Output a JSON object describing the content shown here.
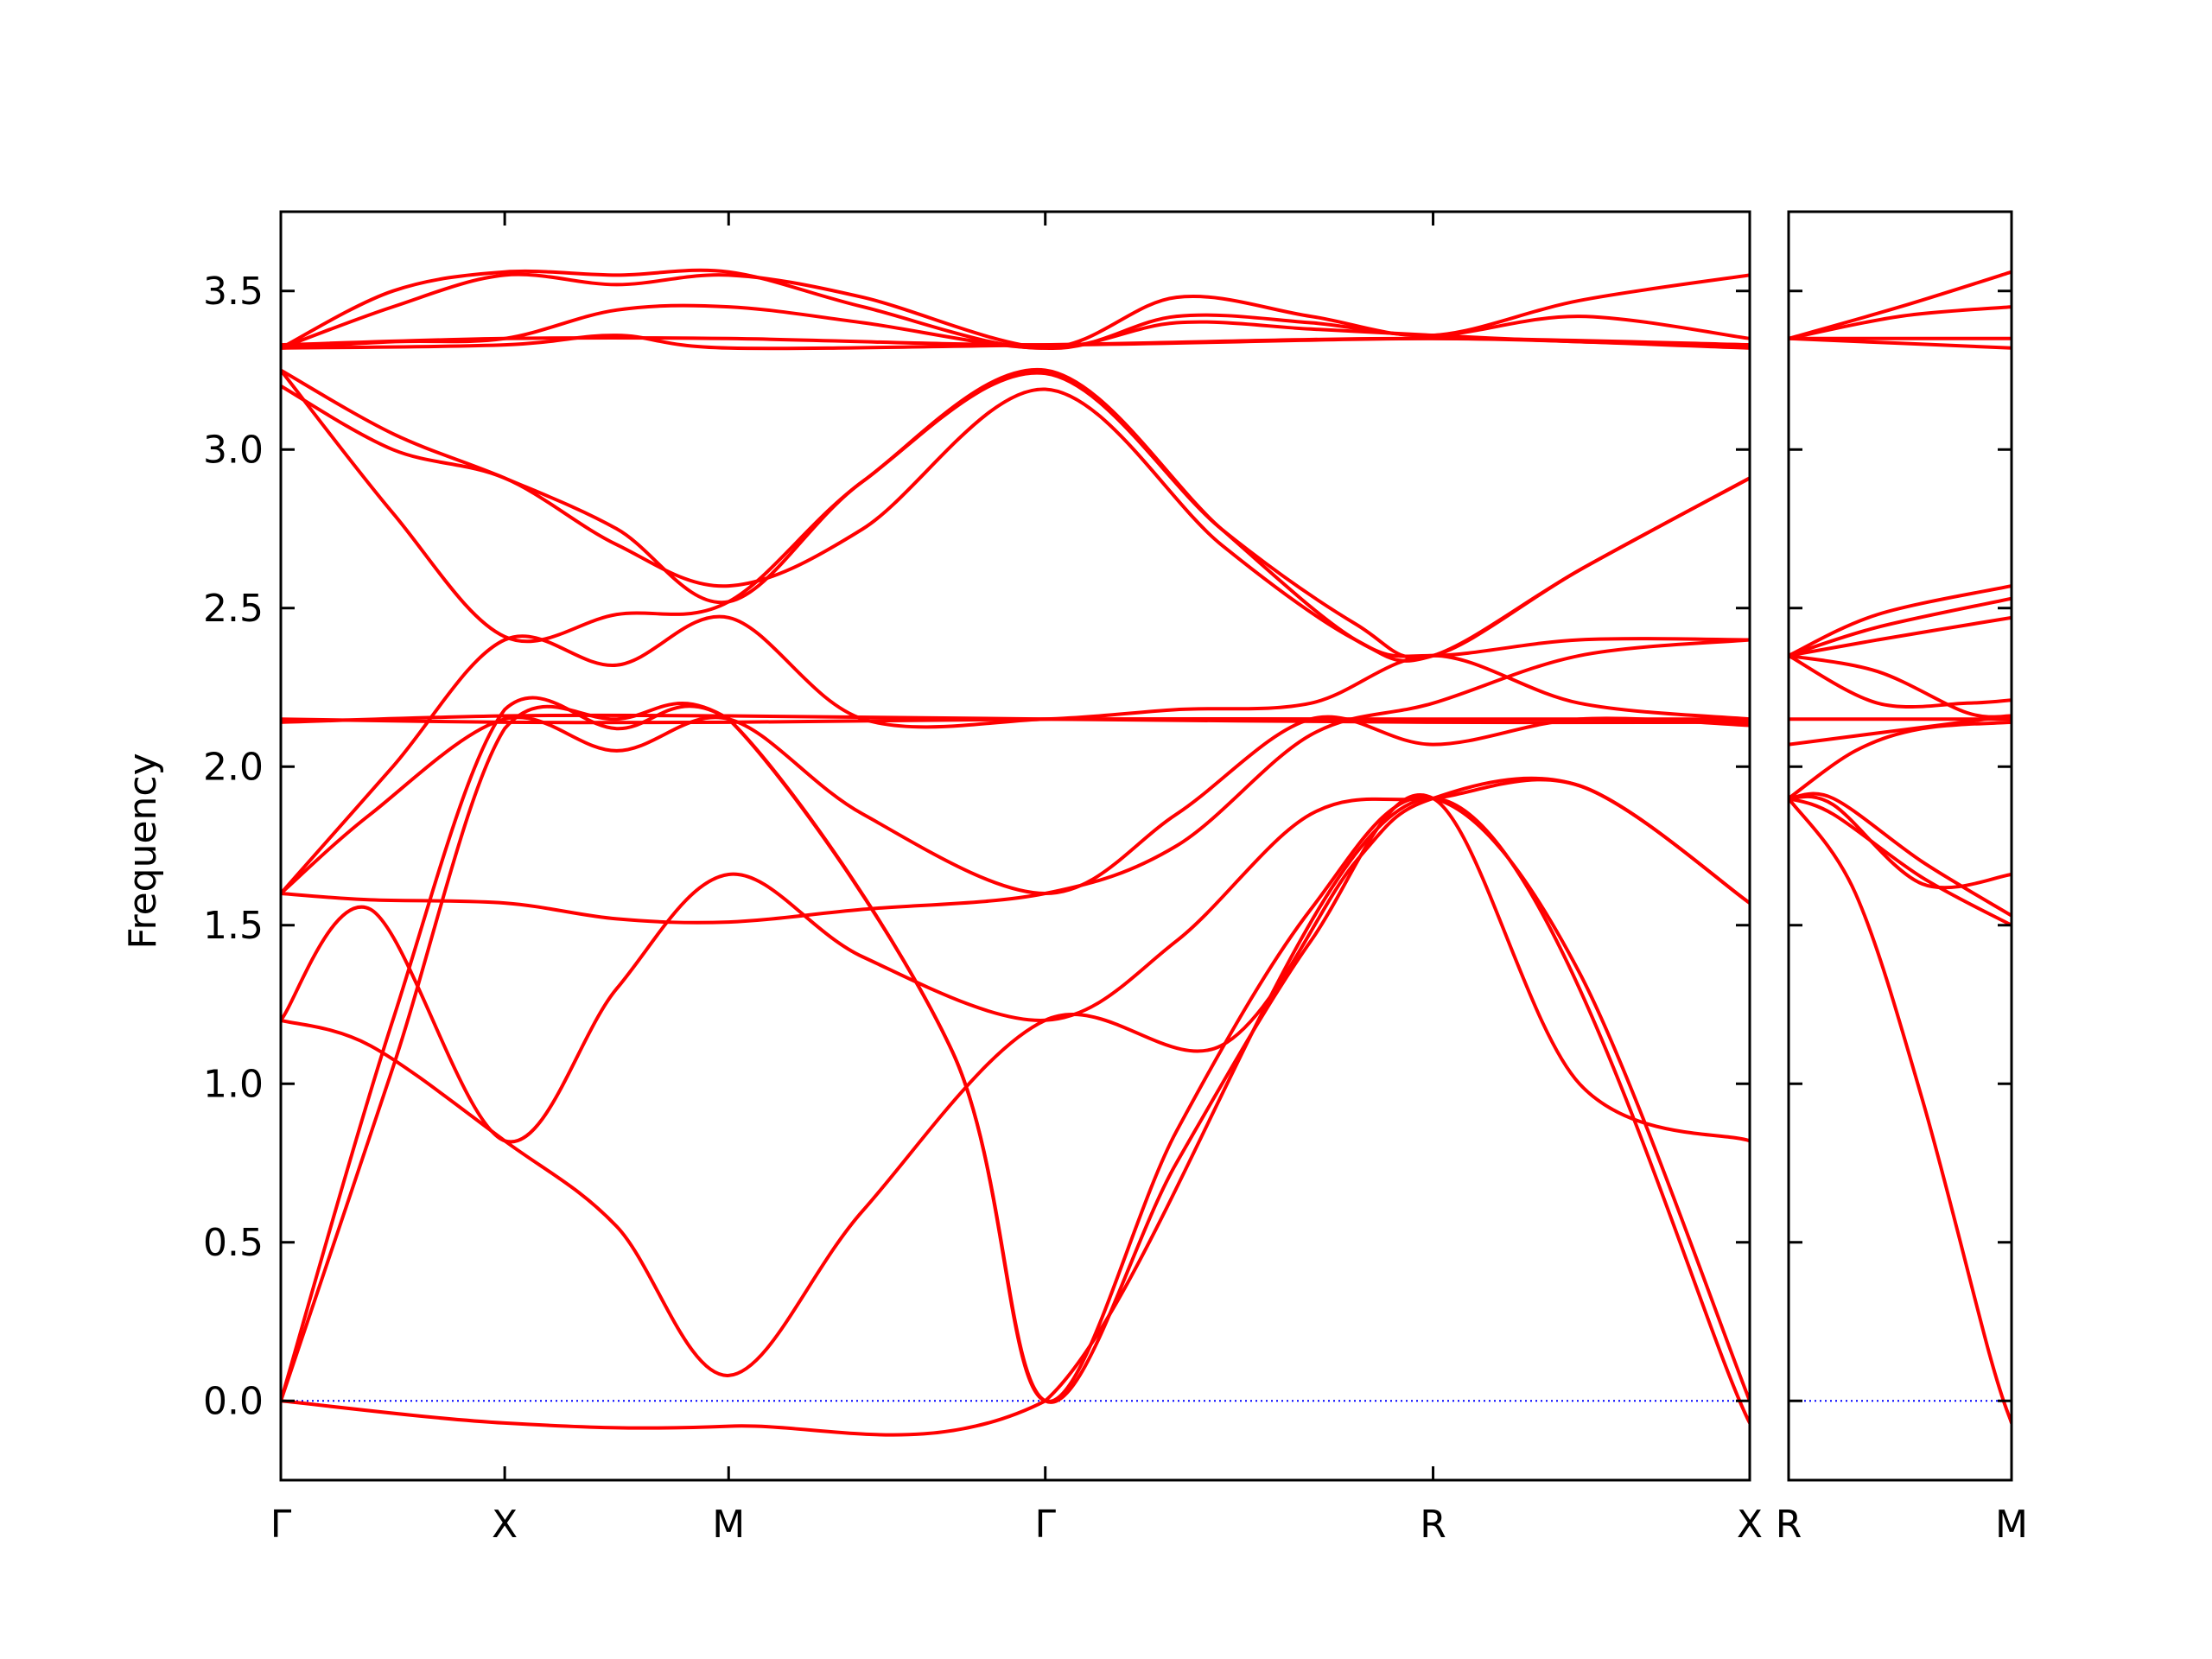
{
  "chart_data": {
    "type": "line",
    "ylabel": "Frequency",
    "ylim": [
      -0.25,
      3.75
    ],
    "yticks": [
      "0.0",
      "0.5",
      "1.0",
      "1.5",
      "2.0",
      "2.5",
      "3.0",
      "3.5"
    ],
    "ytick_values": [
      0.0,
      0.5,
      1.0,
      1.5,
      2.0,
      2.5,
      3.0,
      3.5
    ],
    "band_color": "#ff0000",
    "zero_line_color": "#0000ff",
    "panels": [
      {
        "xticks": [
          "Γ",
          "X",
          "M",
          "Γ",
          "R",
          "X"
        ],
        "xtick_positions": [
          0,
          0.5,
          1.0,
          1.7071,
          2.5731,
          3.2802
        ],
        "xlim": [
          0,
          3.2802
        ],
        "bands": [
          {
            "x": [
              0,
              0.5,
              1.0,
              1.7071,
              2.5731,
              3.2802
            ],
            "y": [
              0.0,
              -0.07,
              -0.08,
              0.0,
              1.9,
              -0.07
            ]
          },
          {
            "x": [
              0,
              0.25,
              0.5,
              0.75,
              1.0,
              1.5,
              1.7071,
              2.0,
              2.3,
              2.5731,
              2.9,
              3.2802
            ],
            "y": [
              0.0,
              1.05,
              2.12,
              2.15,
              2.15,
              1.1,
              0.0,
              0.85,
              1.55,
              1.9,
              1.35,
              0.0
            ]
          },
          {
            "x": [
              0,
              0.25,
              0.5,
              0.75,
              1.0,
              1.5,
              1.7071,
              2.0,
              2.3,
              2.5731,
              2.9,
              3.2802
            ],
            "y": [
              0.0,
              1.2,
              2.18,
              2.12,
              2.15,
              1.1,
              0.0,
              0.75,
              1.45,
              1.9,
              1.0,
              0.82
            ]
          },
          {
            "x": [
              0,
              0.2,
              0.5,
              0.75,
              1.0,
              1.3,
              1.7071,
              2.1,
              2.4,
              2.5731,
              2.9,
              3.2802
            ],
            "y": [
              1.2,
              1.12,
              0.82,
              0.55,
              0.08,
              0.6,
              1.2,
              1.12,
              1.7,
              1.9,
              1.94,
              1.57
            ]
          },
          {
            "x": [
              0,
              0.2,
              0.5,
              0.75,
              1.0,
              1.3,
              1.7071,
              2.0,
              2.3,
              2.5731,
              2.9,
              3.2802
            ],
            "y": [
              1.2,
              1.55,
              0.82,
              1.3,
              1.66,
              1.4,
              1.2,
              1.45,
              1.85,
              1.9,
              1.94,
              1.57
            ]
          },
          {
            "x": [
              0,
              0.2,
              0.5,
              0.75,
              1.0,
              1.3,
              1.7071,
              2.0,
              2.3,
              2.5731,
              2.9,
              3.2802
            ],
            "y": [
              1.6,
              1.58,
              1.57,
              1.52,
              1.51,
              1.55,
              1.6,
              1.75,
              2.1,
              2.2,
              2.35,
              2.4
            ]
          },
          {
            "x": [
              0,
              0.2,
              0.5,
              0.75,
              1.0,
              1.3,
              1.7071,
              2.0,
              2.3,
              2.5731,
              2.9,
              3.2802
            ],
            "y": [
              1.6,
              1.85,
              2.15,
              2.05,
              2.15,
              1.85,
              1.6,
              1.85,
              2.15,
              2.07,
              2.15,
              2.13
            ]
          },
          {
            "x": [
              0,
              0.25,
              0.5,
              0.75,
              1.0,
              1.3,
              1.7071,
              2.0,
              2.3,
              2.5731,
              2.9,
              3.2802
            ],
            "y": [
              1.6,
              2.0,
              2.4,
              2.32,
              2.47,
              2.15,
              2.15,
              2.18,
              2.2,
              2.35,
              2.2,
              2.15
            ]
          },
          {
            "x": [
              0,
              0.5,
              1.0,
              1.7071,
              2.5731,
              3.2802
            ],
            "y": [
              2.15,
              2.14,
              2.14,
              2.15,
              2.15,
              2.15
            ]
          },
          {
            "x": [
              0,
              0.5,
              1.0,
              1.7071,
              2.5731,
              3.2802
            ],
            "y": [
              2.14,
              2.16,
              2.16,
              2.15,
              2.14,
              2.14
            ]
          },
          {
            "x": [
              0,
              0.25,
              0.5,
              0.75,
              1.0,
              1.3,
              1.7071,
              2.1,
              2.4,
              2.5731,
              2.9,
              3.2802
            ],
            "y": [
              3.25,
              2.8,
              2.41,
              2.48,
              2.52,
              2.9,
              3.25,
              2.75,
              2.4,
              2.35,
              2.4,
              2.4
            ]
          },
          {
            "x": [
              0,
              0.25,
              0.5,
              0.75,
              1.0,
              1.3,
              1.7071,
              2.1,
              2.4,
              2.5731,
              2.9,
              3.2802
            ],
            "y": [
              3.25,
              3.05,
              2.91,
              2.75,
              2.52,
              2.9,
              3.24,
              2.75,
              2.45,
              2.35,
              2.62,
              2.91
            ]
          },
          {
            "x": [
              0,
              0.25,
              0.5,
              0.75,
              1.0,
              1.3,
              1.7071,
              2.1,
              2.4,
              2.5731,
              2.9,
              3.2802
            ],
            "y": [
              3.2,
              3.0,
              2.91,
              2.7,
              2.57,
              2.75,
              3.19,
              2.7,
              2.4,
              2.35,
              2.62,
              2.91
            ]
          },
          {
            "x": [
              0,
              0.25,
              0.5,
              0.75,
              1.0,
              1.3,
              1.7071,
              2.0,
              2.3,
              2.5731,
              2.9,
              3.2802
            ],
            "y": [
              3.32,
              3.5,
              3.56,
              3.55,
              3.56,
              3.45,
              3.32,
              3.48,
              3.42,
              3.36,
              3.47,
              3.55
            ]
          },
          {
            "x": [
              0,
              0.25,
              0.5,
              0.75,
              1.0,
              1.3,
              1.7071,
              2.0,
              2.3,
              2.5731,
              2.9,
              3.2802
            ],
            "y": [
              3.32,
              3.45,
              3.55,
              3.52,
              3.55,
              3.48,
              3.32,
              3.42,
              3.4,
              3.36,
              3.42,
              3.35
            ]
          },
          {
            "x": [
              0,
              0.25,
              0.5,
              0.75,
              1.0,
              1.3,
              1.7071,
              2.0,
              2.3,
              2.5731,
              2.9,
              3.2802
            ],
            "y": [
              3.32,
              3.34,
              3.35,
              3.44,
              3.45,
              3.4,
              3.32,
              3.4,
              3.38,
              3.36,
              3.34,
              3.33
            ]
          },
          {
            "x": [
              0,
              0.5,
              0.75,
              1.0,
              1.7071,
              2.5731,
              3.2802
            ],
            "y": [
              3.32,
              3.33,
              3.36,
              3.32,
              3.33,
              3.35,
              3.32
            ]
          },
          {
            "x": [
              0,
              0.5,
              1.0,
              1.7071,
              2.5731,
              3.2802
            ],
            "y": [
              3.33,
              3.35,
              3.35,
              3.33,
              3.35,
              3.33
            ]
          }
        ]
      },
      {
        "xticks": [
          "R",
          "M"
        ],
        "xtick_positions": [
          0,
          0.5
        ],
        "xlim": [
          0,
          0.5
        ],
        "bands": [
          {
            "x": [
              0,
              0.15,
              0.3,
              0.45,
              0.5
            ],
            "y": [
              1.9,
              1.6,
              0.95,
              0.15,
              -0.07
            ]
          },
          {
            "x": [
              0,
              0.1,
              0.3,
              0.5
            ],
            "y": [
              1.9,
              1.85,
              1.65,
              1.5
            ]
          },
          {
            "x": [
              0,
              0.1,
              0.3,
              0.5
            ],
            "y": [
              1.9,
              1.9,
              1.7,
              1.53
            ]
          },
          {
            "x": [
              0,
              0.1,
              0.3,
              0.5
            ],
            "y": [
              1.9,
              1.88,
              1.63,
              1.66
            ]
          },
          {
            "x": [
              0,
              0.15,
              0.3,
              0.5
            ],
            "y": [
              1.9,
              2.05,
              2.12,
              2.14
            ]
          },
          {
            "x": [
              0,
              0.5
            ],
            "y": [
              2.07,
              2.16
            ]
          },
          {
            "x": [
              0,
              0.5
            ],
            "y": [
              2.15,
              2.15
            ]
          },
          {
            "x": [
              0,
              0.2,
              0.4,
              0.5
            ],
            "y": [
              2.35,
              2.2,
              2.2,
              2.21
            ]
          },
          {
            "x": [
              0,
              0.2,
              0.4,
              0.5
            ],
            "y": [
              2.35,
              2.3,
              2.17,
              2.16
            ]
          },
          {
            "x": [
              0,
              0.2,
              0.5
            ],
            "y": [
              2.35,
              2.48,
              2.57
            ]
          },
          {
            "x": [
              0,
              0.2,
              0.5
            ],
            "y": [
              2.35,
              2.44,
              2.53
            ]
          },
          {
            "x": [
              0,
              0.2,
              0.5
            ],
            "y": [
              2.35,
              2.4,
              2.47
            ]
          },
          {
            "x": [
              0,
              0.25,
              0.5
            ],
            "y": [
              3.35,
              3.45,
              3.56
            ]
          },
          {
            "x": [
              0,
              0.25,
              0.5
            ],
            "y": [
              3.35,
              3.42,
              3.45
            ]
          },
          {
            "x": [
              0,
              0.5
            ],
            "y": [
              3.35,
              3.35
            ]
          },
          {
            "x": [
              0,
              0.5
            ],
            "y": [
              3.35,
              3.32
            ]
          }
        ]
      }
    ]
  }
}
